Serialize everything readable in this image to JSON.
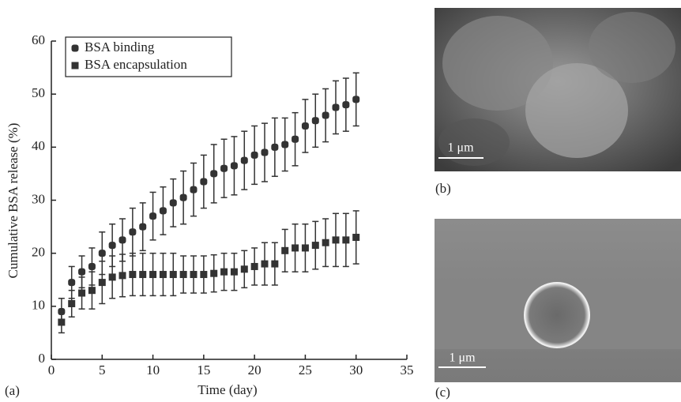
{
  "chart_data": {
    "type": "errorbar",
    "xlabel": "Time (day)",
    "ylabel": "Cumulative BSA release (%)",
    "xlim": [
      0,
      35
    ],
    "xticks": [
      0,
      5,
      10,
      15,
      20,
      25,
      30,
      35
    ],
    "ylim": [
      0,
      60
    ],
    "yticks": [
      0,
      10,
      20,
      30,
      40,
      50,
      60
    ],
    "legend": "upper left",
    "x": [
      1,
      2,
      3,
      4,
      5,
      6,
      7,
      8,
      9,
      10,
      11,
      12,
      13,
      14,
      15,
      16,
      17,
      18,
      19,
      20,
      21,
      22,
      23,
      24,
      25,
      26,
      27,
      28,
      29,
      30
    ],
    "series": [
      {
        "name": "BSA binding",
        "color": "#333333",
        "marker": "circle",
        "values": [
          9,
          14.5,
          16.5,
          17.5,
          20,
          21.5,
          22.5,
          24,
          25,
          27,
          28,
          29.5,
          30.5,
          32,
          33.5,
          35,
          36,
          36.5,
          37.5,
          38.5,
          39,
          40,
          40.5,
          41.5,
          44,
          45,
          46,
          47.5,
          48,
          49
        ],
        "errors": [
          2.5,
          3,
          3,
          3.5,
          4,
          4,
          4,
          4.5,
          4.5,
          4.5,
          4.5,
          4.5,
          5,
          5,
          5,
          5.5,
          5.5,
          5.5,
          5.5,
          5.5,
          5.5,
          5.5,
          5,
          5,
          5,
          5,
          5,
          5,
          5,
          5
        ]
      },
      {
        "name": "BSA encapsulation",
        "color": "#333333",
        "marker": "square",
        "values": [
          7,
          10.5,
          12.5,
          13,
          14.5,
          15.5,
          15.8,
          16,
          16,
          16,
          16,
          16,
          16,
          16,
          16,
          16.2,
          16.5,
          16.5,
          17,
          17.5,
          18,
          18,
          20.5,
          21,
          21,
          21.5,
          22,
          22.5,
          22.5,
          23
        ],
        "errors": [
          2,
          2.5,
          3,
          3.5,
          4,
          4,
          4,
          4,
          4,
          4,
          4,
          4,
          3.5,
          3.5,
          3.5,
          3.5,
          3.5,
          3.5,
          3.5,
          3.5,
          4,
          4,
          4,
          4.5,
          4.5,
          4.5,
          4.5,
          5,
          5,
          5
        ]
      }
    ]
  },
  "panel_labels": [
    "(a)",
    "(b)",
    "(c)"
  ],
  "scale_bars": [
    "1 μm",
    "1 μm"
  ]
}
